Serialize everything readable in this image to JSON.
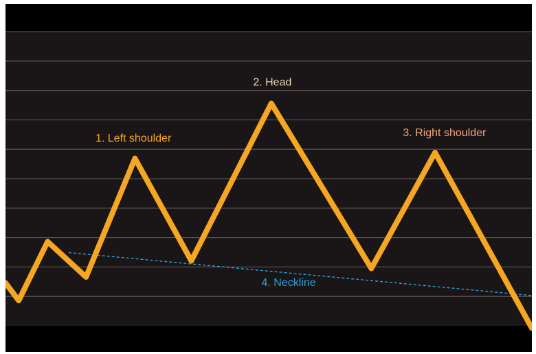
{
  "chart_data": {
    "type": "line",
    "title": "",
    "xlabel": "",
    "ylabel": "",
    "grid": true,
    "xlim": [
      0,
      100
    ],
    "ylim": [
      0,
      100
    ],
    "gridlines_y": [
      10,
      20,
      30,
      40,
      50,
      60,
      70,
      80,
      90,
      100
    ],
    "series": [
      {
        "x": [
          0,
          2.5,
          8,
          15.3,
          24.6,
          35.3,
          50.5,
          69.5,
          81.6,
          100
        ],
        "y": [
          14.6,
          8.6,
          28.6,
          16.6,
          56.9,
          22.1,
          75.6,
          19.5,
          58.9,
          -0.8
        ],
        "color": "#F5A623"
      }
    ],
    "neckline": {
      "x": [
        12,
        100
      ],
      "y": [
        24.9,
        10.3
      ],
      "color": "#29A3D9"
    },
    "annotations": [
      {
        "text": "1. Left shoulder",
        "x": 24.3,
        "y": 62.6,
        "color": "#F5A623"
      },
      {
        "text": "2. Head",
        "x": 50.7,
        "y": 81.7,
        "color": "#EAD8B8"
      },
      {
        "text": "3. Right shoulder",
        "x": 83.4,
        "y": 64.5,
        "color": "#F2A67E"
      },
      {
        "text": "4. Neckline",
        "x": 53.8,
        "y": 13.5,
        "color": "#29A3D9"
      }
    ],
    "colors": {
      "background": "#1A1516",
      "grid": "#56514F"
    }
  }
}
